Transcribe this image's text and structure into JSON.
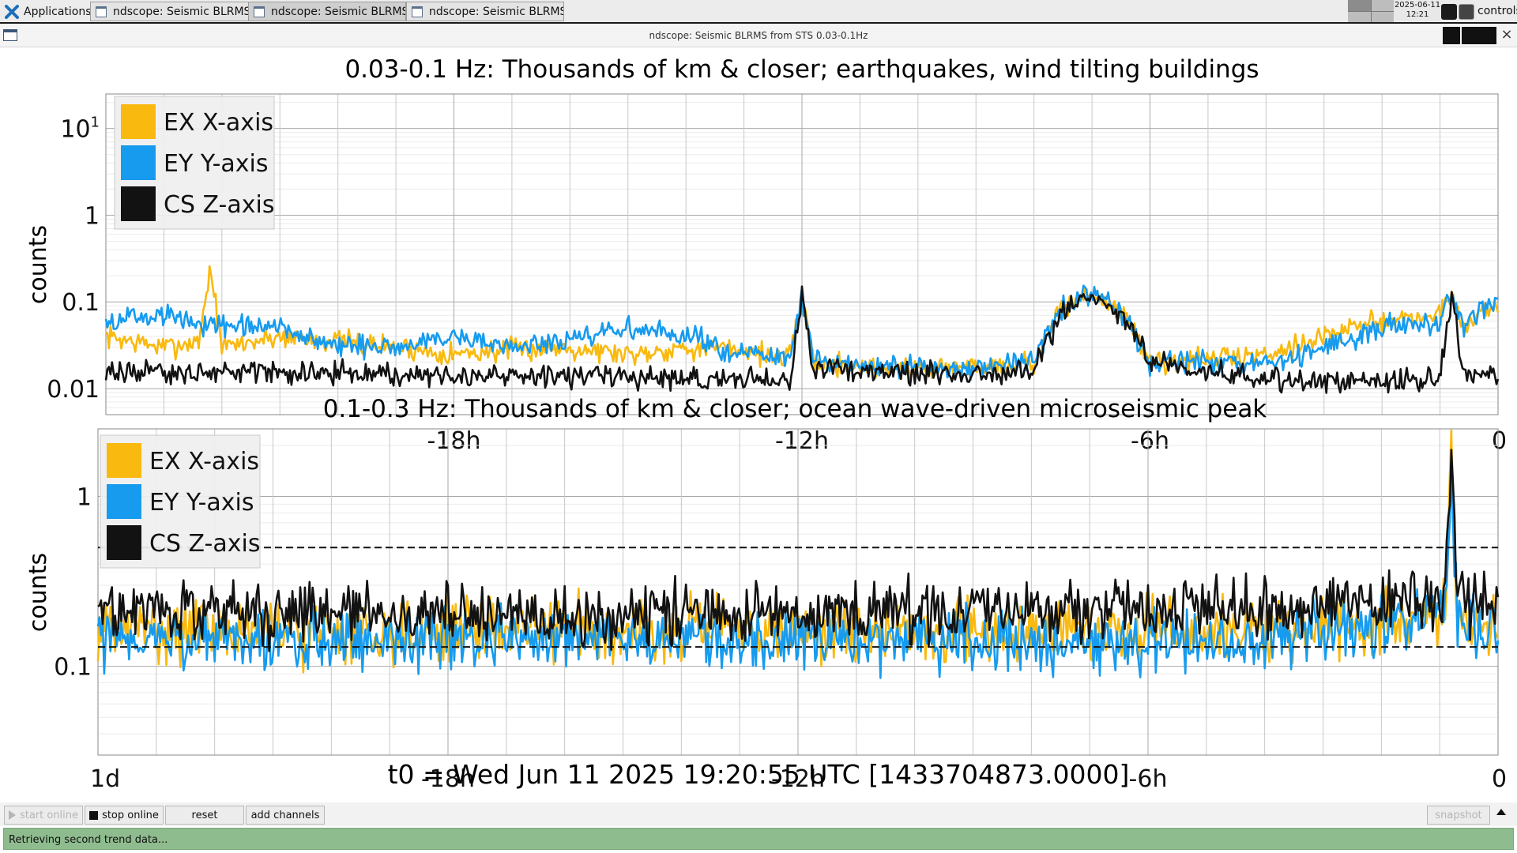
{
  "taskbar": {
    "applications_label": "Applications",
    "tabs": [
      {
        "label": "ndscope: Seismic BLRMS f..."
      },
      {
        "label": "ndscope: Seismic BLRMS f..."
      },
      {
        "label": "ndscope: Seismic BLRMS f..."
      }
    ],
    "date": "2025-06-11",
    "time": "12:21",
    "user": "controls"
  },
  "window": {
    "title": "ndscope: Seismic BLRMS from STS 0.03-0.1Hz",
    "close_glyph": "×"
  },
  "colors": {
    "ex": "#f9b90f",
    "ey": "#169bef",
    "cs": "#121212",
    "grid_major": "#c8c8c8",
    "grid_minor": "#ebebeb",
    "status_bg": "#8fbc8f"
  },
  "legend": [
    {
      "key": "ex",
      "label": "EX X-axis"
    },
    {
      "key": "ey",
      "label": "EY Y-axis"
    },
    {
      "key": "cs",
      "label": "CS Z-axis"
    }
  ],
  "chart_data": [
    {
      "type": "line",
      "title": "0.03-0.1 Hz: Thousands of km & closer; earthquakes, wind tilting buildings",
      "ylabel": "counts",
      "yscale": "log",
      "ylim": [
        0.005,
        25
      ],
      "y_ticks": [
        {
          "value": 0.01,
          "label": "0.01"
        },
        {
          "value": 0.1,
          "label": "0.1"
        },
        {
          "value": 1,
          "label": "1"
        },
        {
          "value": 10,
          "label": "10",
          "sup": "1"
        }
      ],
      "x_unit": "hours relative to t0",
      "xlim": [
        -24,
        0
      ],
      "x_ticks": [
        {
          "value": -18,
          "label": "-18h"
        },
        {
          "value": -12,
          "label": "-12h"
        },
        {
          "value": -6,
          "label": "-6h"
        },
        {
          "value": 0,
          "label": "0"
        }
      ],
      "legend_position": "top-left",
      "grid": true,
      "series": [
        {
          "key": "ex",
          "name": "EX X-axis",
          "x": [
            -24,
            -23,
            -22.4,
            -22.2,
            -22,
            -21,
            -20,
            -19,
            -18,
            -17,
            -16,
            -15,
            -14,
            -13,
            -12.2,
            -12,
            -11.8,
            -11,
            -10,
            -9,
            -8,
            -7.5,
            -7,
            -6.7,
            -6.3,
            -6,
            -5,
            -4,
            -3,
            -2,
            -1,
            -0.8,
            -0.6,
            -0.4,
            0
          ],
          "y": [
            0.04,
            0.03,
            0.035,
            0.25,
            0.03,
            0.04,
            0.035,
            0.03,
            0.025,
            0.028,
            0.03,
            0.025,
            0.03,
            0.028,
            0.022,
            0.12,
            0.02,
            0.018,
            0.017,
            0.018,
            0.02,
            0.09,
            0.12,
            0.1,
            0.05,
            0.02,
            0.022,
            0.025,
            0.04,
            0.06,
            0.07,
            0.13,
            0.05,
            0.07,
            0.09
          ]
        },
        {
          "key": "ey",
          "name": "EY Y-axis",
          "x": [
            -24,
            -23,
            -22,
            -21,
            -20,
            -19,
            -18,
            -17,
            -16,
            -15,
            -14,
            -13,
            -12.2,
            -12,
            -11.8,
            -11,
            -10,
            -9,
            -8,
            -7.5,
            -7,
            -6.7,
            -6.3,
            -6,
            -5,
            -4,
            -3,
            -2,
            -1,
            -0.8,
            -0.6,
            -0.4,
            0
          ],
          "y": [
            0.06,
            0.07,
            0.05,
            0.05,
            0.03,
            0.03,
            0.04,
            0.03,
            0.035,
            0.05,
            0.04,
            0.025,
            0.022,
            0.12,
            0.02,
            0.018,
            0.017,
            0.018,
            0.02,
            0.09,
            0.12,
            0.1,
            0.05,
            0.02,
            0.02,
            0.018,
            0.03,
            0.05,
            0.06,
            0.14,
            0.05,
            0.08,
            0.1
          ]
        },
        {
          "key": "cs",
          "name": "CS Z-axis",
          "x": [
            -24,
            -23,
            -22,
            -21,
            -20,
            -19,
            -18,
            -17,
            -16,
            -15,
            -14,
            -13,
            -12.2,
            -12,
            -11.8,
            -11,
            -10,
            -9,
            -8,
            -7.5,
            -7,
            -6.7,
            -6.3,
            -6,
            -5,
            -4,
            -3,
            -2,
            -1,
            -0.8,
            -0.6,
            -0.4,
            0
          ],
          "y": [
            0.015,
            0.015,
            0.016,
            0.015,
            0.015,
            0.014,
            0.014,
            0.014,
            0.014,
            0.013,
            0.013,
            0.013,
            0.013,
            0.11,
            0.018,
            0.016,
            0.015,
            0.015,
            0.016,
            0.08,
            0.11,
            0.09,
            0.05,
            0.02,
            0.016,
            0.013,
            0.012,
            0.012,
            0.013,
            0.12,
            0.015,
            0.015,
            0.015
          ]
        }
      ]
    },
    {
      "type": "line",
      "title": "0.1-0.3 Hz: Thousands of km & closer; ocean wave-driven microseismic peak",
      "ylabel": "counts",
      "yscale": "log",
      "ylim": [
        0.03,
        2.5
      ],
      "y_ticks": [
        {
          "value": 0.1,
          "label": "0.1"
        },
        {
          "value": 1,
          "label": "1"
        }
      ],
      "reference_lines": [
        0.5,
        0.13
      ],
      "x_unit": "hours relative to t0",
      "xlim": [
        -24,
        0
      ],
      "x_ticks": [
        {
          "value": -24,
          "label": "1d"
        },
        {
          "value": -18,
          "label": "-18h"
        },
        {
          "value": -12,
          "label": "-12h"
        },
        {
          "value": -6,
          "label": "-6h"
        },
        {
          "value": 0,
          "label": "0"
        }
      ],
      "legend_position": "top-left",
      "grid": true,
      "series": [
        {
          "key": "ex",
          "name": "EX X-axis",
          "x": [
            -24,
            -20,
            -16,
            -12,
            -8,
            -4,
            -0.9,
            -0.8,
            -0.7,
            0
          ],
          "y": [
            0.17,
            0.16,
            0.17,
            0.16,
            0.16,
            0.16,
            0.2,
            1.8,
            0.2,
            0.16
          ]
        },
        {
          "key": "ey",
          "name": "EY Y-axis",
          "x": [
            -24,
            -20,
            -16,
            -12,
            -8,
            -4,
            -0.9,
            -0.8,
            -0.7,
            0
          ],
          "y": [
            0.15,
            0.14,
            0.15,
            0.14,
            0.14,
            0.14,
            0.2,
            1.5,
            0.2,
            0.14
          ]
        },
        {
          "key": "cs",
          "name": "CS Z-axis",
          "x": [
            -24,
            -20,
            -16,
            -12,
            -8,
            -4,
            -0.9,
            -0.8,
            -0.7,
            0
          ],
          "y": [
            0.22,
            0.21,
            0.2,
            0.21,
            0.21,
            0.22,
            0.25,
            2.0,
            0.25,
            0.22
          ]
        }
      ]
    }
  ],
  "t0_label": "t0 = Wed Jun 11 2025 19:20:55 UTC [1433704873.0000]",
  "buttons": {
    "start_online": "start online",
    "stop_online": "stop online",
    "reset": "reset",
    "add_channels": "add channels",
    "snapshot": "snapshot"
  },
  "status": "Retrieving second trend data..."
}
